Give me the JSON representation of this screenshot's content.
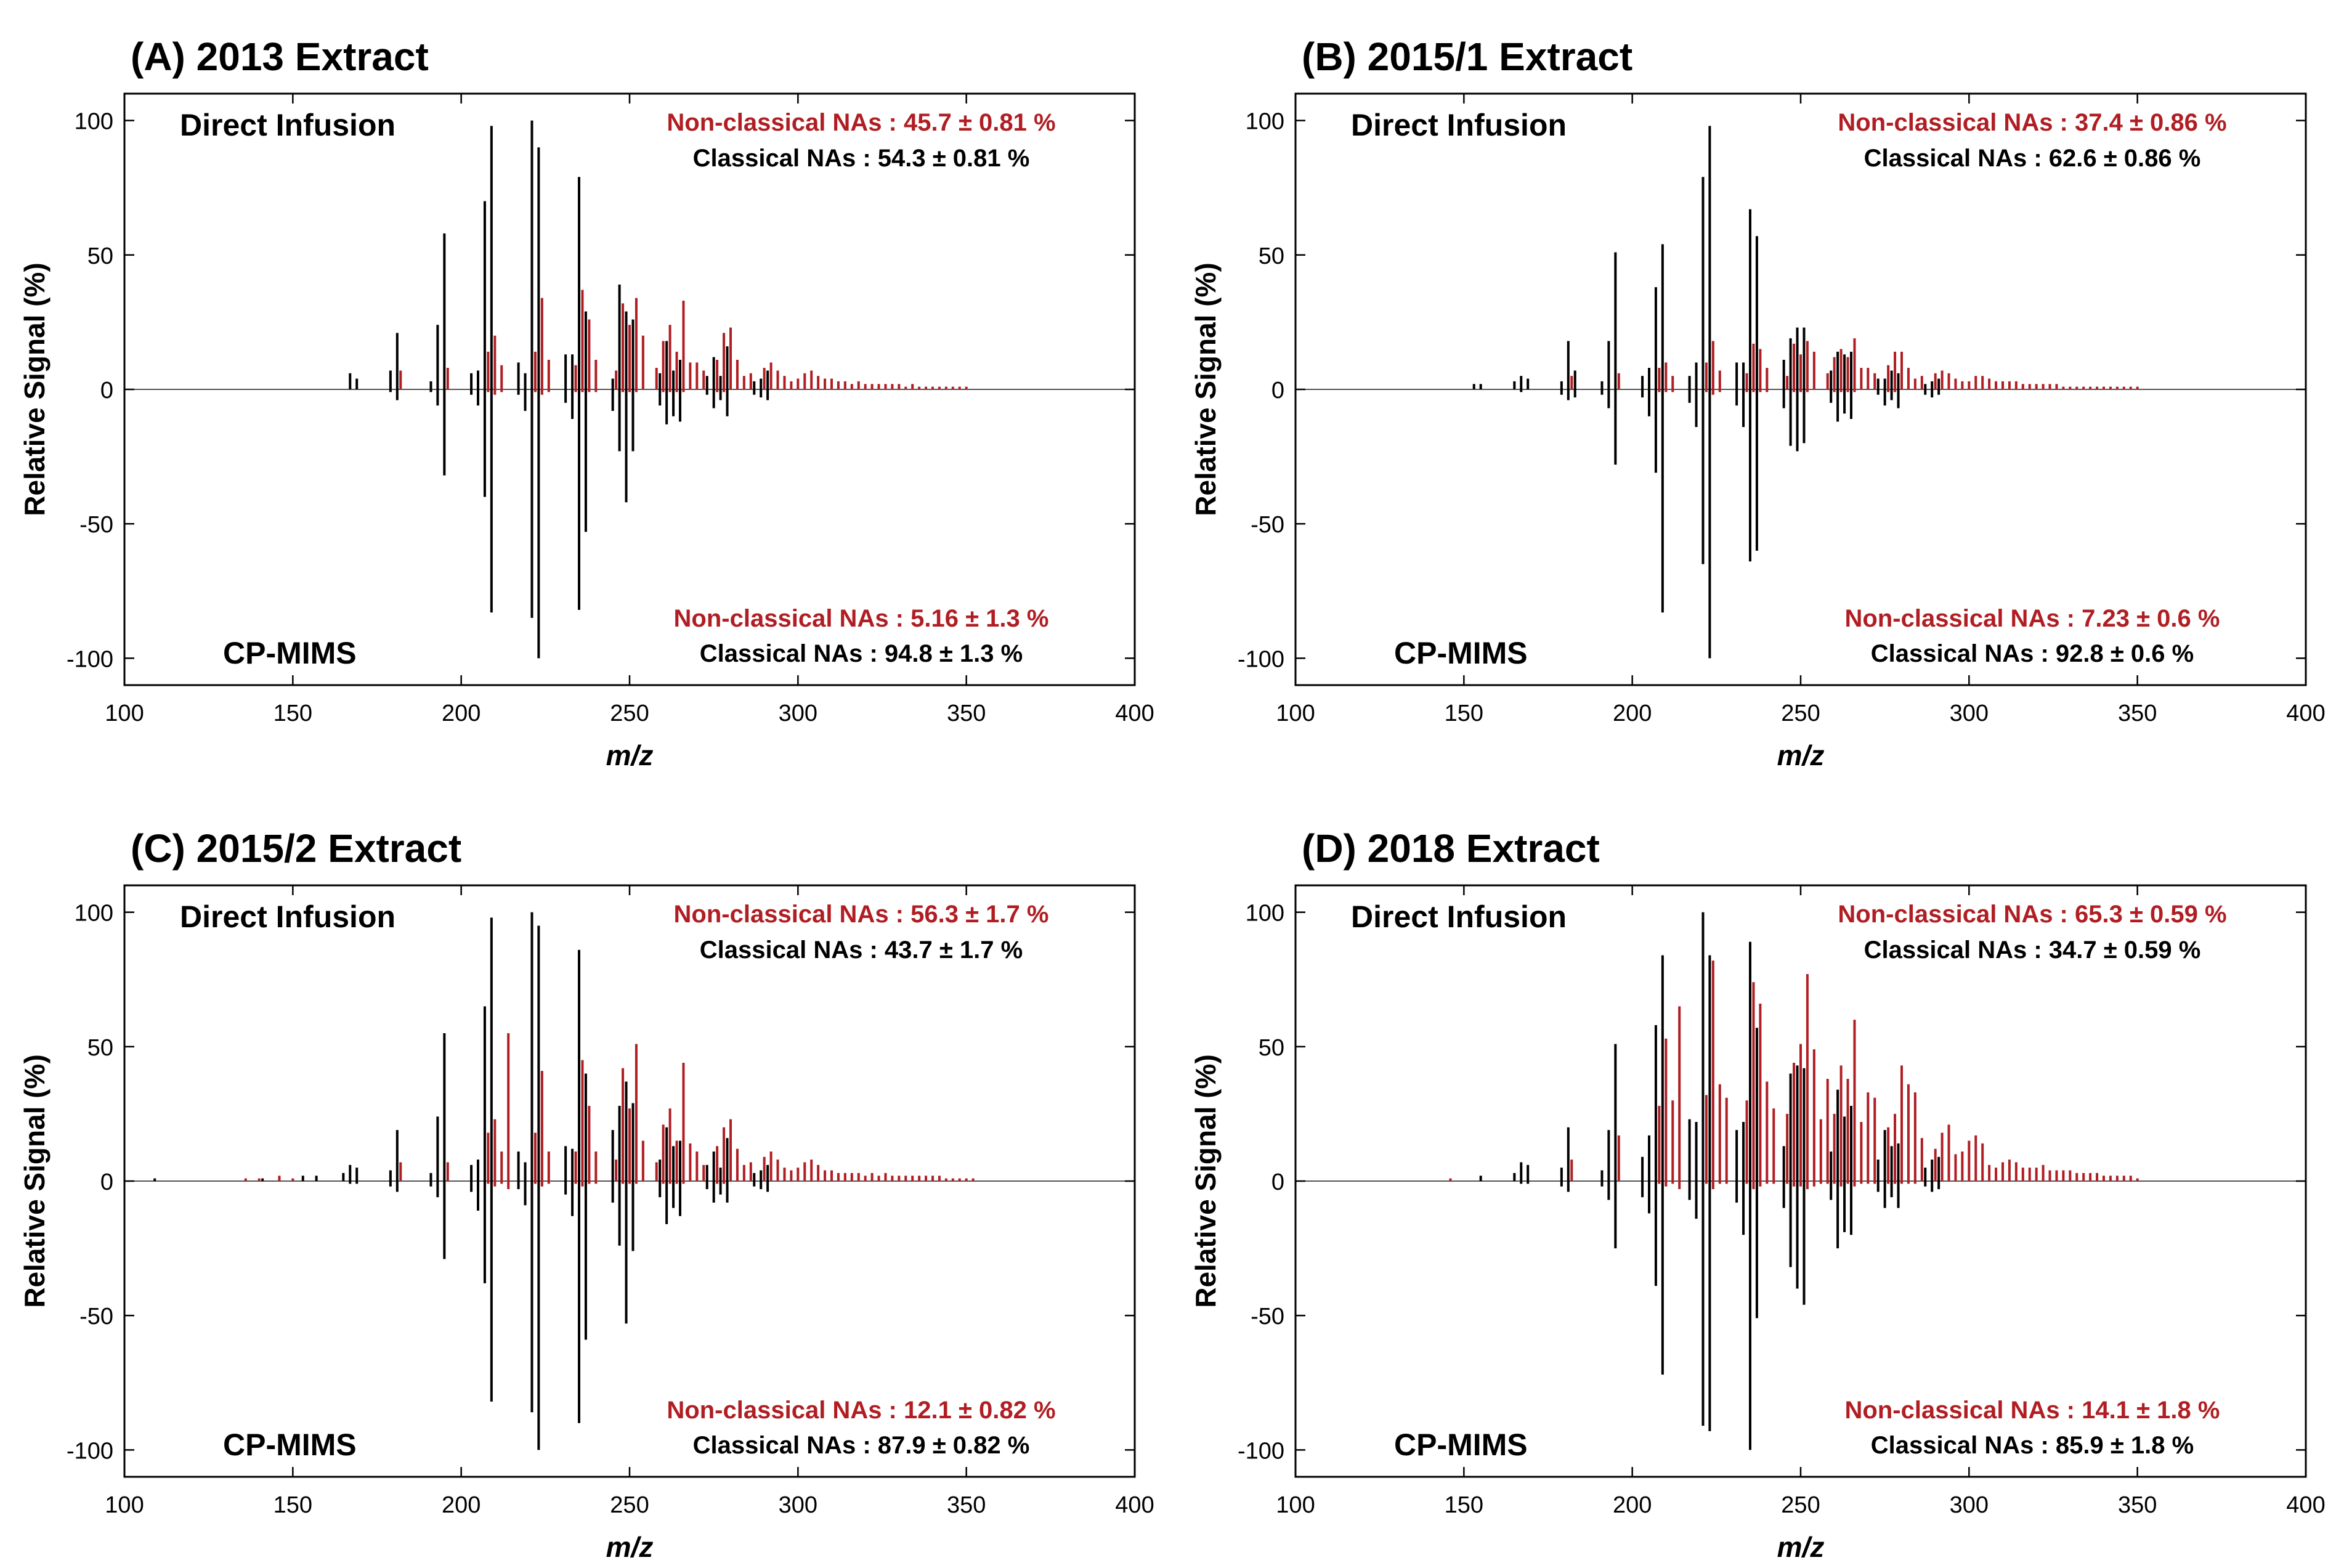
{
  "figure": {
    "colors": {
      "classical": "#000000",
      "nonclassical": "#b01e23",
      "axis": "#000000"
    },
    "xlabel": "m/z",
    "ylabel": "Relative Signal (%)",
    "xticks": [
      "100",
      "150",
      "200",
      "250",
      "300",
      "350",
      "400"
    ],
    "yticks": [
      "100",
      "50",
      "0",
      "-50",
      "-100"
    ]
  },
  "chart_data": [
    {
      "type": "bar",
      "title": "(A) 2013 Extract",
      "top_label": "Direct Infusion",
      "bottom_label": "CP-MIMS",
      "xlim": [
        100,
        400
      ],
      "ylim": [
        -110,
        110
      ],
      "fractions": {
        "top_nonclassical": "Non-classical NAs : 45.7 ± 0.81 %",
        "top_classical": "Classical NAs : 54.3 ± 0.81 %",
        "bottom_nonclassical": "Non-classical NAs : 5.16 ± 1.3 %",
        "bottom_classical": "Classical NAs : 94.8 ± 1.3 %"
      },
      "classical_mz": [
        167,
        169,
        179,
        181,
        191,
        193,
        195,
        203,
        205,
        207,
        209,
        217,
        219,
        221,
        223,
        231,
        233,
        235,
        237,
        245,
        247,
        249,
        251,
        259,
        261,
        263,
        265,
        273,
        275,
        277,
        279,
        287,
        289,
        291
      ],
      "classical_top": [
        6,
        4,
        7,
        21,
        3,
        24,
        58,
        6,
        7,
        70,
        98,
        10,
        6,
        100,
        90,
        13,
        13,
        79,
        29,
        4,
        39,
        29,
        26,
        6,
        18,
        7,
        11,
        5,
        12,
        5,
        16,
        3,
        4,
        7
      ],
      "classical_bottom": [
        0,
        0,
        -1,
        -4,
        -1,
        -6,
        -32,
        -2,
        -6,
        -40,
        -83,
        -2,
        -8,
        -85,
        -100,
        -5,
        -11,
        -82,
        -53,
        -8,
        -23,
        -42,
        -23,
        -6,
        -13,
        -10,
        -12,
        -2,
        -7,
        -4,
        -10,
        -2,
        -3,
        -4
      ],
      "nonclassical_mz": [
        182,
        196,
        208,
        210,
        212,
        222,
        224,
        226,
        234,
        236,
        238,
        240,
        246,
        248,
        250,
        252,
        254,
        258,
        260,
        262,
        264,
        266,
        268,
        270,
        272,
        276,
        278,
        280,
        282,
        284,
        286,
        290,
        292,
        294,
        296,
        298,
        300,
        302,
        304,
        306,
        308,
        310,
        312,
        314,
        316,
        318,
        320,
        322,
        324,
        326,
        328,
        330,
        332,
        334,
        336,
        338,
        340,
        342,
        344,
        346,
        348,
        350
      ],
      "nonclassical_top": [
        7,
        8,
        14,
        20,
        9,
        14,
        34,
        11,
        9,
        37,
        26,
        11,
        7,
        32,
        24,
        34,
        20,
        8,
        18,
        24,
        14,
        33,
        10,
        10,
        7,
        11,
        21,
        23,
        11,
        5,
        6,
        8,
        10,
        7,
        5,
        3,
        4,
        6,
        7,
        5,
        4,
        4,
        3,
        3,
        2,
        3,
        2,
        2,
        2,
        2,
        2,
        2,
        1,
        2,
        1,
        1,
        1,
        1,
        1,
        1,
        1,
        1
      ],
      "nonclassical_bottom": [
        0,
        0,
        -1,
        -2,
        -1,
        -1,
        -2,
        -1,
        -1,
        -1,
        -1,
        -1,
        0,
        -1,
        -1,
        -1,
        0,
        0,
        -1,
        -1,
        -1,
        -1,
        0,
        0,
        0,
        -1,
        -1,
        0,
        0,
        0,
        0,
        0,
        0,
        0,
        0,
        0,
        0,
        0,
        0,
        0,
        0,
        0,
        0,
        0,
        0,
        0,
        0,
        0,
        0,
        0,
        0,
        0,
        0,
        0,
        0,
        0,
        0,
        0,
        0,
        0,
        0,
        0
      ]
    },
    {
      "type": "bar",
      "title": "(B) 2015/1 Extract",
      "top_label": "Direct Infusion",
      "bottom_label": "CP-MIMS",
      "xlim": [
        100,
        400
      ],
      "ylim": [
        -110,
        110
      ],
      "fractions": {
        "top_nonclassical": "Non-classical NAs : 37.4 ± 0.86 %",
        "top_classical": "Classical NAs : 62.6 ± 0.86 %",
        "bottom_nonclassical": "Non-classical NAs : 7.23 ± 0.6 %",
        "bottom_classical": "Classical NAs : 92.8 ± 0.6 %"
      },
      "classical_mz": [
        153,
        155,
        165,
        167,
        169,
        179,
        181,
        183,
        191,
        193,
        195,
        203,
        205,
        207,
        209,
        217,
        219,
        221,
        223,
        231,
        233,
        235,
        237,
        245,
        247,
        249,
        251,
        259,
        261,
        263,
        265,
        273,
        275,
        277,
        279,
        287,
        289,
        291
      ],
      "classical_top": [
        2,
        2,
        3,
        5,
        4,
        3,
        18,
        7,
        3,
        18,
        51,
        5,
        8,
        38,
        54,
        5,
        10,
        79,
        98,
        10,
        10,
        67,
        57,
        11,
        19,
        23,
        23,
        7,
        14,
        13,
        14,
        4,
        4,
        7,
        6,
        2,
        3,
        4
      ],
      "classical_bottom": [
        0,
        0,
        0,
        -1,
        0,
        -2,
        -4,
        -3,
        -2,
        -7,
        -28,
        -3,
        -10,
        -31,
        -83,
        -5,
        -14,
        -65,
        -100,
        -6,
        -14,
        -64,
        -60,
        -7,
        -21,
        -23,
        -20,
        -5,
        -12,
        -9,
        -11,
        -2,
        -6,
        -4,
        -7,
        -2,
        -3,
        -2
      ],
      "nonclassical_mz": [
        182,
        196,
        208,
        210,
        212,
        222,
        224,
        226,
        234,
        236,
        238,
        240,
        246,
        248,
        250,
        252,
        254,
        258,
        260,
        262,
        264,
        266,
        268,
        270,
        272,
        276,
        278,
        280,
        282,
        284,
        286,
        290,
        292,
        294,
        296,
        298,
        300,
        302,
        304,
        306,
        308,
        310,
        312,
        314,
        316,
        318,
        320,
        322,
        324,
        326,
        328,
        330,
        332,
        334,
        336,
        338,
        340,
        342,
        344,
        346,
        348,
        350
      ],
      "nonclassical_top": [
        5,
        6,
        8,
        10,
        5,
        10,
        18,
        7,
        6,
        17,
        15,
        8,
        5,
        17,
        13,
        18,
        14,
        6,
        12,
        15,
        12,
        19,
        8,
        8,
        6,
        9,
        14,
        14,
        8,
        4,
        5,
        6,
        7,
        6,
        4,
        3,
        3,
        5,
        5,
        4,
        3,
        3,
        3,
        3,
        2,
        2,
        2,
        2,
        2,
        2,
        1,
        1,
        1,
        1,
        1,
        1,
        1,
        1,
        1,
        1,
        1,
        1
      ],
      "nonclassical_bottom": [
        0,
        0,
        -1,
        -1,
        -1,
        -1,
        -2,
        -1,
        -1,
        -1,
        -1,
        -1,
        0,
        -1,
        -1,
        -1,
        0,
        0,
        -1,
        -1,
        -1,
        -1,
        0,
        0,
        0,
        -1,
        -1,
        0,
        0,
        0,
        0,
        0,
        0,
        0,
        0,
        0,
        0,
        0,
        0,
        0,
        0,
        0,
        0,
        0,
        0,
        0,
        0,
        0,
        0,
        0,
        0,
        0,
        0,
        0,
        0,
        0,
        0,
        0,
        0,
        0,
        0,
        0
      ]
    },
    {
      "type": "bar",
      "title": "(C) 2015/2 Extract",
      "top_label": "Direct Infusion",
      "bottom_label": "CP-MIMS",
      "xlim": [
        100,
        400
      ],
      "ylim": [
        -110,
        110
      ],
      "fractions": {
        "top_nonclassical": "Non-classical NAs : 56.3 ± 1.7 %",
        "top_classical": "Classical NAs : 43.7 ± 1.7 %",
        "bottom_nonclassical": "Non-classical NAs : 12.1 ± 0.82 %",
        "bottom_classical": "Classical NAs : 87.9 ± 0.82 %"
      },
      "classical_mz": [
        109,
        141,
        153,
        157,
        165,
        167,
        169,
        179,
        181,
        191,
        193,
        195,
        203,
        205,
        207,
        209,
        217,
        219,
        221,
        223,
        231,
        233,
        235,
        237,
        245,
        247,
        249,
        251,
        259,
        261,
        263,
        265,
        273,
        275,
        277,
        279,
        287,
        289,
        291
      ],
      "classical_top": [
        1,
        1,
        2,
        2,
        3,
        6,
        5,
        4,
        19,
        3,
        24,
        55,
        6,
        8,
        65,
        98,
        11,
        7,
        100,
        95,
        13,
        12,
        86,
        40,
        19,
        28,
        37,
        29,
        8,
        20,
        13,
        15,
        6,
        11,
        5,
        16,
        3,
        4,
        6
      ],
      "classical_bottom": [
        0,
        0,
        0,
        0,
        0,
        -1,
        -1,
        -2,
        -4,
        -2,
        -6,
        -29,
        -4,
        -11,
        -38,
        -82,
        -3,
        -9,
        -86,
        -100,
        -5,
        -13,
        -90,
        -59,
        -8,
        -24,
        -53,
        -26,
        -6,
        -16,
        -10,
        -13,
        -3,
        -8,
        -5,
        -8,
        -2,
        -3,
        -4
      ],
      "nonclassical_mz": [
        136,
        140,
        146,
        150,
        182,
        196,
        208,
        210,
        212,
        214,
        222,
        224,
        226,
        234,
        236,
        238,
        240,
        246,
        248,
        250,
        252,
        254,
        258,
        260,
        262,
        264,
        266,
        268,
        270,
        272,
        276,
        278,
        280,
        282,
        284,
        286,
        290,
        292,
        294,
        296,
        298,
        300,
        302,
        304,
        306,
        308,
        310,
        312,
        314,
        316,
        318,
        320,
        322,
        324,
        326,
        328,
        330,
        332,
        334,
        336,
        338,
        340,
        342,
        344,
        346,
        348,
        350,
        352
      ],
      "nonclassical_top": [
        1,
        1,
        2,
        1,
        7,
        7,
        18,
        23,
        11,
        55,
        18,
        41,
        11,
        11,
        45,
        28,
        11,
        8,
        42,
        27,
        51,
        15,
        7,
        21,
        27,
        15,
        44,
        14,
        11,
        6,
        13,
        20,
        23,
        12,
        6,
        7,
        9,
        11,
        8,
        5,
        4,
        5,
        7,
        8,
        6,
        4,
        4,
        3,
        3,
        3,
        3,
        2,
        3,
        2,
        3,
        2,
        2,
        2,
        2,
        2,
        2,
        2,
        2,
        1,
        1,
        1,
        1,
        1
      ],
      "nonclassical_bottom": [
        0,
        0,
        0,
        0,
        0,
        0,
        -1,
        -2,
        -1,
        -3,
        -1,
        -2,
        -1,
        -1,
        -2,
        -1,
        -1,
        0,
        -1,
        -1,
        -1,
        0,
        0,
        -1,
        -1,
        -1,
        -1,
        0,
        0,
        0,
        -1,
        -1,
        0,
        0,
        0,
        0,
        0,
        0,
        0,
        0,
        0,
        0,
        0,
        0,
        0,
        0,
        0,
        0,
        0,
        0,
        0,
        0,
        0,
        0,
        0,
        0,
        0,
        0,
        0,
        0,
        0,
        0,
        0,
        0,
        0,
        0,
        0,
        0
      ]
    },
    {
      "type": "bar",
      "title": "(D) 2018 Extract",
      "top_label": "Direct Infusion",
      "bottom_label": "CP-MIMS",
      "xlim": [
        100,
        400
      ],
      "ylim": [
        -110,
        110
      ],
      "fractions": {
        "top_nonclassical": "Non-classical NAs : 65.3 ± 0.59 %",
        "top_classical": "Classical NAs : 34.7 ± 0.59 %",
        "bottom_nonclassical": "Non-classical NAs : 14.1 ± 1.8 %",
        "bottom_classical": "Classical NAs : 85.9 ± 1.8 %"
      },
      "classical_mz": [
        155,
        165,
        167,
        169,
        179,
        181,
        191,
        193,
        195,
        203,
        205,
        207,
        209,
        217,
        219,
        221,
        223,
        231,
        233,
        235,
        237,
        245,
        247,
        249,
        251,
        259,
        261,
        263,
        265,
        273,
        275,
        277,
        279,
        287,
        289,
        291
      ],
      "classical_top": [
        2,
        3,
        7,
        6,
        5,
        20,
        4,
        19,
        51,
        9,
        17,
        58,
        84,
        23,
        22,
        100,
        84,
        19,
        22,
        89,
        57,
        13,
        40,
        43,
        42,
        11,
        34,
        24,
        28,
        8,
        19,
        13,
        14,
        5,
        8,
        9
      ],
      "classical_bottom": [
        0,
        0,
        -1,
        -1,
        -2,
        -4,
        -2,
        -7,
        -25,
        -6,
        -12,
        -39,
        -72,
        -7,
        -14,
        -91,
        -93,
        -8,
        -20,
        -100,
        -51,
        -10,
        -32,
        -40,
        -46,
        -7,
        -25,
        -19,
        -20,
        -4,
        -10,
        -6,
        -10,
        -2,
        -4,
        -3
      ],
      "nonclassical_mz": [
        146,
        182,
        196,
        208,
        210,
        212,
        214,
        222,
        224,
        226,
        228,
        234,
        236,
        238,
        240,
        242,
        246,
        248,
        250,
        252,
        254,
        256,
        258,
        260,
        262,
        264,
        266,
        268,
        270,
        272,
        276,
        278,
        280,
        282,
        284,
        286,
        290,
        292,
        294,
        296,
        298,
        300,
        302,
        304,
        306,
        308,
        310,
        312,
        314,
        316,
        318,
        320,
        322,
        324,
        326,
        328,
        330,
        332,
        334,
        336,
        338,
        340,
        342,
        344,
        346,
        348,
        350
      ],
      "nonclassical_top": [
        1,
        8,
        17,
        28,
        53,
        30,
        65,
        32,
        82,
        36,
        31,
        30,
        74,
        66,
        37,
        27,
        25,
        44,
        51,
        77,
        49,
        23,
        38,
        25,
        43,
        38,
        60,
        22,
        33,
        31,
        20,
        25,
        43,
        36,
        33,
        16,
        12,
        18,
        21,
        10,
        11,
        15,
        17,
        14,
        6,
        5,
        7,
        8,
        7,
        5,
        5,
        5,
        6,
        4,
        4,
        4,
        4,
        3,
        3,
        3,
        3,
        2,
        2,
        2,
        2,
        2,
        1
      ],
      "nonclassical_bottom": [
        0,
        0,
        0,
        -1,
        -2,
        -1,
        -3,
        -1,
        -3,
        -1,
        -1,
        -1,
        -3,
        -2,
        -1,
        -1,
        -1,
        -2,
        -2,
        -3,
        -2,
        -1,
        -1,
        -1,
        -2,
        -1,
        -2,
        -1,
        -1,
        -1,
        -1,
        -1,
        -1,
        -1,
        -1,
        0,
        0,
        0,
        0,
        0,
        0,
        0,
        0,
        0,
        0,
        0,
        0,
        0,
        0,
        0,
        0,
        0,
        0,
        0,
        0,
        0,
        0,
        0,
        0,
        0,
        0,
        0,
        0,
        0,
        0,
        0,
        0
      ]
    }
  ]
}
